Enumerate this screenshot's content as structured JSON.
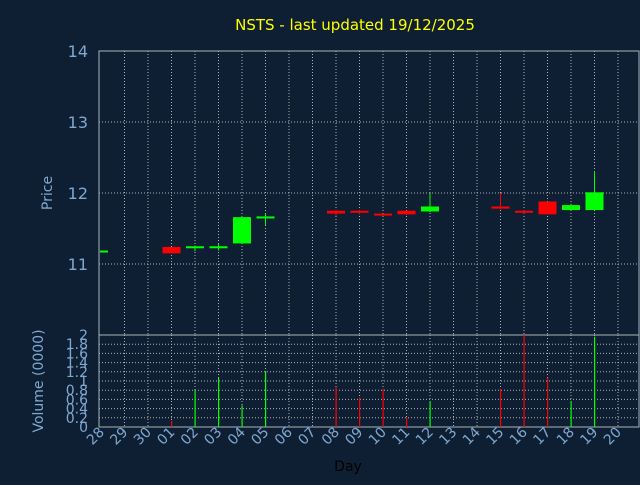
{
  "chart_data": [
    {
      "type": "candlestick",
      "title": "NSTS - last updated 19/12/2025",
      "ylabel": "Price",
      "ylim": [
        10.0,
        14.0
      ],
      "yticks": [
        11,
        12,
        13,
        14
      ],
      "grid": true,
      "colors": {
        "up": "#00ff00",
        "down": "#ff0000",
        "background": "#0f1f33",
        "grid": "#b0b0b0",
        "axis_text": "#7fa8d0",
        "title": "#ffff00"
      },
      "x": [
        "28",
        "29",
        "30",
        "01",
        "02",
        "03",
        "04",
        "05",
        "06",
        "07",
        "08",
        "09",
        "10",
        "11",
        "12",
        "13",
        "14",
        "15",
        "16",
        "17",
        "18",
        "19",
        "20"
      ],
      "candles": [
        {
          "day": "28",
          "open": 11.19,
          "high": 11.19,
          "low": 11.19,
          "close": 11.19
        },
        {
          "day": "01",
          "open": 11.24,
          "high": 11.24,
          "low": 11.15,
          "close": 11.15
        },
        {
          "day": "02",
          "open": 11.24,
          "high": 11.26,
          "low": 11.18,
          "close": 11.25
        },
        {
          "day": "03",
          "open": 11.24,
          "high": 11.28,
          "low": 11.19,
          "close": 11.25
        },
        {
          "day": "04",
          "open": 11.29,
          "high": 11.67,
          "low": 11.29,
          "close": 11.66
        },
        {
          "day": "05",
          "open": 11.66,
          "high": 11.71,
          "low": 11.55,
          "close": 11.67
        },
        {
          "day": "08",
          "open": 11.75,
          "high": 11.76,
          "low": 11.68,
          "close": 11.71
        },
        {
          "day": "09",
          "open": 11.75,
          "high": 11.76,
          "low": 11.7,
          "close": 11.74
        },
        {
          "day": "10",
          "open": 11.71,
          "high": 11.71,
          "low": 11.68,
          "close": 11.69
        },
        {
          "day": "11",
          "open": 11.75,
          "high": 11.75,
          "low": 11.69,
          "close": 11.7
        },
        {
          "day": "12",
          "open": 11.74,
          "high": 12.0,
          "low": 11.73,
          "close": 11.81
        },
        {
          "day": "15",
          "open": 11.81,
          "high": 12.0,
          "low": 11.77,
          "close": 11.78
        },
        {
          "day": "16",
          "open": 11.75,
          "high": 11.76,
          "low": 11.71,
          "close": 11.73
        },
        {
          "day": "17",
          "open": 11.88,
          "high": 11.88,
          "low": 11.7,
          "close": 11.7
        },
        {
          "day": "18",
          "open": 11.76,
          "high": 11.85,
          "low": 11.75,
          "close": 11.83
        },
        {
          "day": "19",
          "open": 11.76,
          "high": 12.31,
          "low": 11.75,
          "close": 12.01
        }
      ]
    },
    {
      "type": "bar",
      "ylabel": "Volume (0000)",
      "xlabel": "Day",
      "ylim": [
        0,
        2
      ],
      "yticks": [
        0,
        0.2,
        0.4,
        0.6,
        0.8,
        1,
        1.2,
        1.4,
        1.6,
        1.8,
        2
      ],
      "ytick_labels": [
        "0",
        "0.2",
        "0.4",
        "0.6",
        "0.8",
        "1",
        "1.2",
        "1.4",
        "1.6",
        "1.8",
        "2"
      ],
      "grid": true,
      "x": [
        "28",
        "29",
        "30",
        "01",
        "02",
        "03",
        "04",
        "05",
        "06",
        "07",
        "08",
        "09",
        "10",
        "11",
        "12",
        "13",
        "14",
        "15",
        "16",
        "17",
        "18",
        "19",
        "20"
      ],
      "bars": [
        {
          "day": "28",
          "value": 0.01,
          "dir": "up"
        },
        {
          "day": "01",
          "value": 0.13,
          "dir": "down"
        },
        {
          "day": "02",
          "value": 0.8,
          "dir": "up"
        },
        {
          "day": "03",
          "value": 1.07,
          "dir": "up"
        },
        {
          "day": "04",
          "value": 0.47,
          "dir": "up"
        },
        {
          "day": "05",
          "value": 1.22,
          "dir": "up"
        },
        {
          "day": "08",
          "value": 0.86,
          "dir": "down"
        },
        {
          "day": "09",
          "value": 0.64,
          "dir": "down"
        },
        {
          "day": "10",
          "value": 0.83,
          "dir": "down"
        },
        {
          "day": "11",
          "value": 0.2,
          "dir": "down"
        },
        {
          "day": "12",
          "value": 0.56,
          "dir": "up"
        },
        {
          "day": "15",
          "value": 0.83,
          "dir": "down"
        },
        {
          "day": "16",
          "value": 2.0,
          "dir": "down"
        },
        {
          "day": "17",
          "value": 1.07,
          "dir": "down"
        },
        {
          "day": "18",
          "value": 0.56,
          "dir": "up"
        },
        {
          "day": "19",
          "value": 1.96,
          "dir": "up"
        }
      ]
    }
  ]
}
